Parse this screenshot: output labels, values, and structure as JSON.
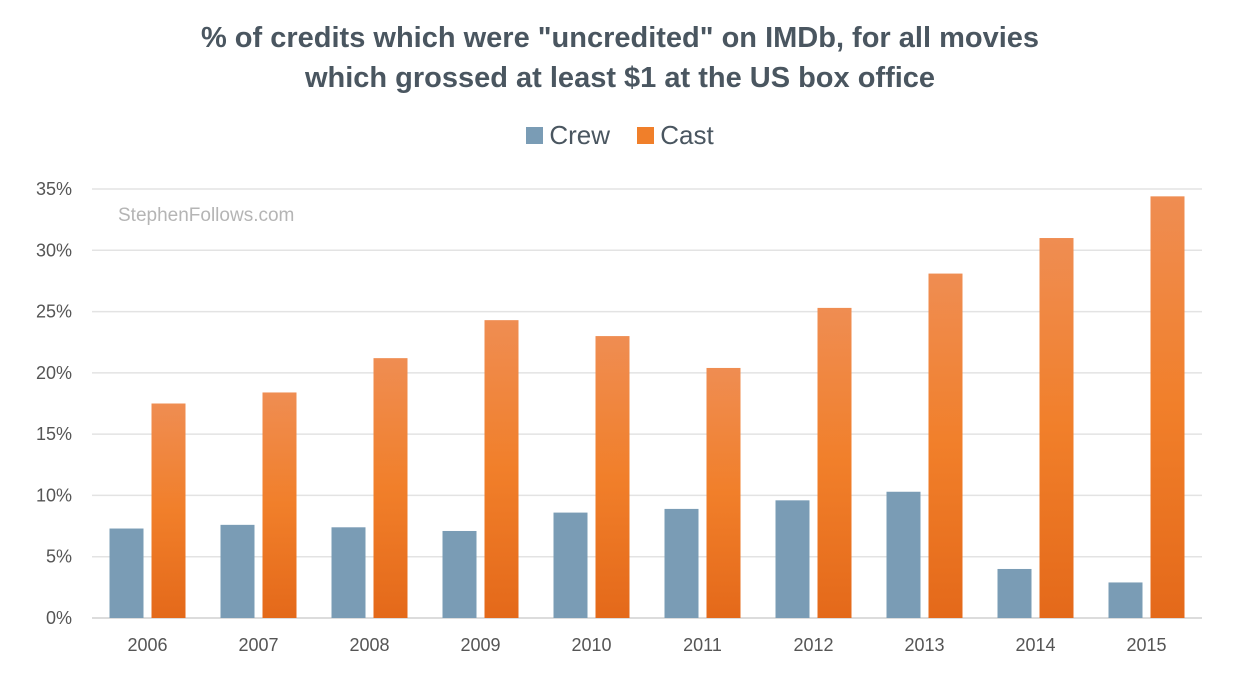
{
  "chart_data": {
    "type": "bar",
    "title": [
      "% of credits which were \"uncredited\" on IMDb, for all movies",
      "which grossed at least $1 at the US box office"
    ],
    "watermark": "StephenFollows.com",
    "categories": [
      "2006",
      "2007",
      "2008",
      "2009",
      "2010",
      "2011",
      "2012",
      "2013",
      "2014",
      "2015"
    ],
    "series": [
      {
        "name": "Crew",
        "color": "#7a9cb5",
        "values": [
          7.3,
          7.6,
          7.4,
          7.1,
          8.6,
          8.9,
          9.6,
          10.3,
          4.0,
          2.9
        ]
      },
      {
        "name": "Cast",
        "color": "#f07f2a",
        "values": [
          17.5,
          18.4,
          21.2,
          24.3,
          23.0,
          20.4,
          25.3,
          28.1,
          31.0,
          34.4
        ]
      }
    ],
    "ylim": [
      0,
      35
    ],
    "yticks": [
      "0%",
      "5%",
      "10%",
      "15%",
      "20%",
      "25%",
      "30%",
      "35%"
    ],
    "grid": true,
    "legend_position": "top"
  }
}
